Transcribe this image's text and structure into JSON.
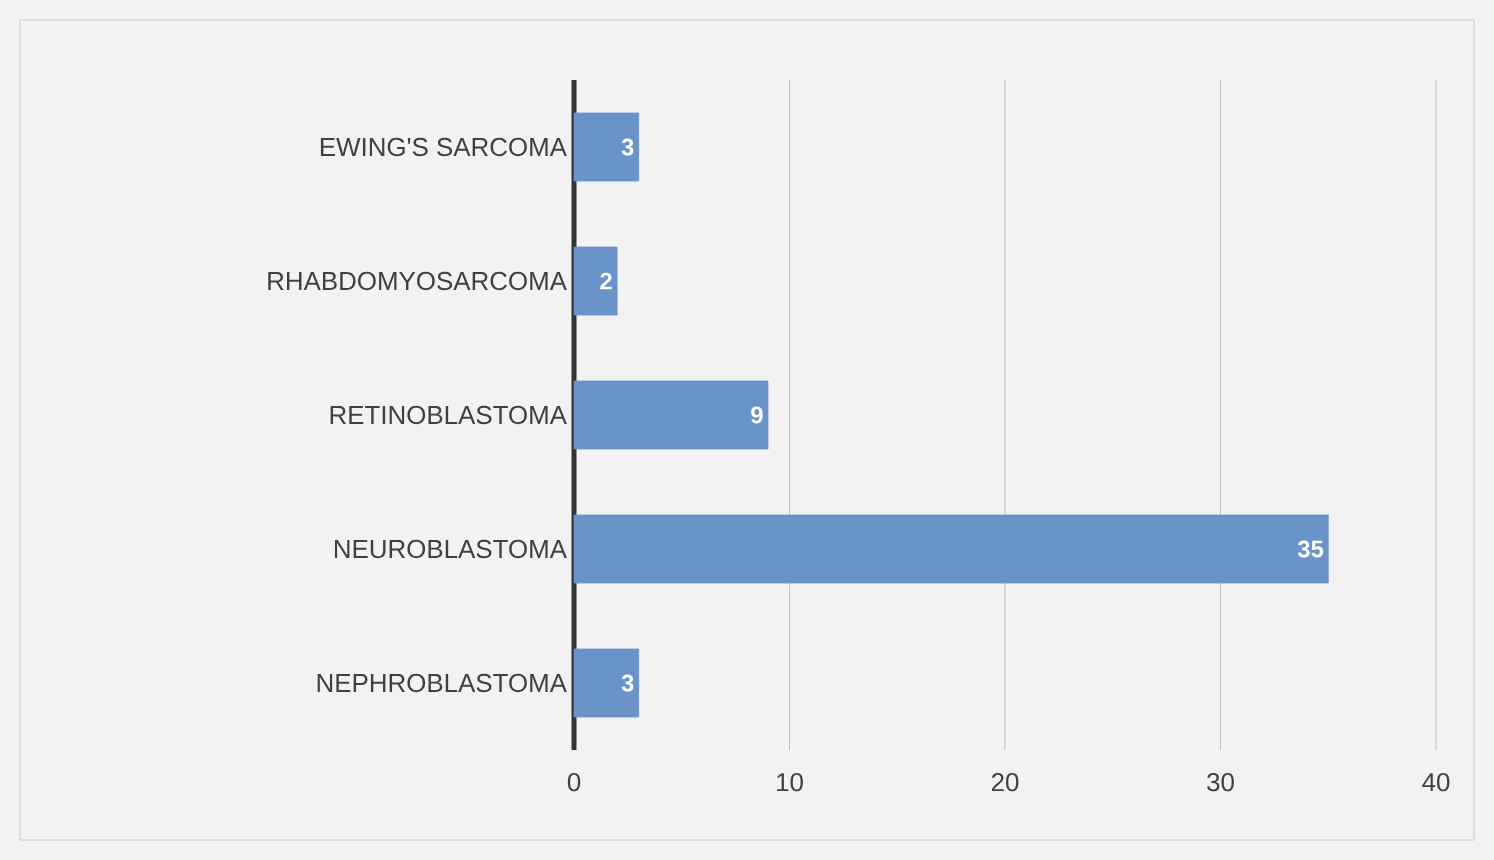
{
  "chart_data": {
    "type": "bar",
    "orientation": "horizontal",
    "categories": [
      "EWING'S SARCOMA",
      "RHABDOMYOSARCOMA",
      "RETINOBLASTOMA",
      "NEUROBLASTOMA",
      "NEPHROBLASTOMA"
    ],
    "values": [
      3,
      2,
      9,
      35,
      3
    ],
    "color": "#6a93c9",
    "xlim": [
      0,
      40
    ],
    "xticks": [
      0,
      10,
      20,
      30,
      40
    ],
    "grid": "x",
    "data_labels": true
  }
}
